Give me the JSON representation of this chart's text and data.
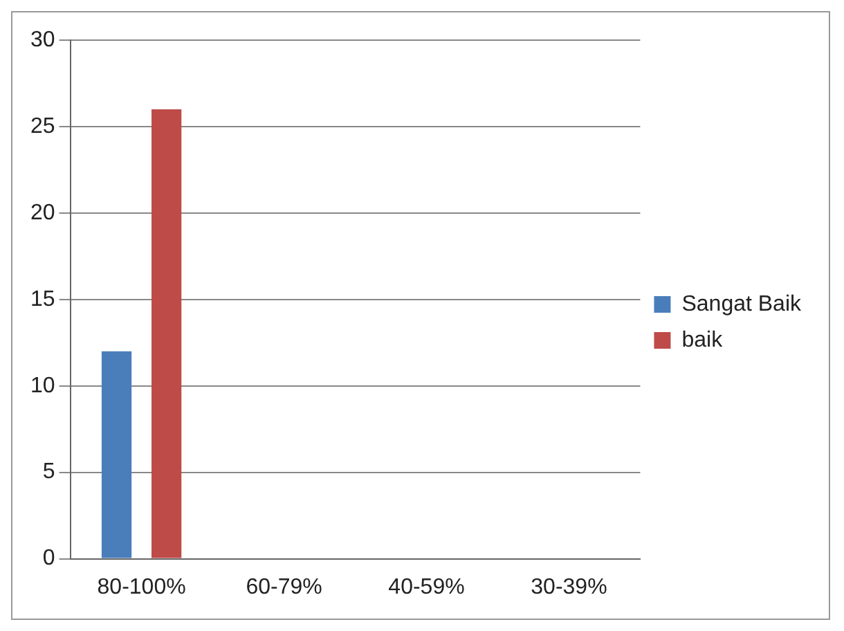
{
  "chart_data": {
    "type": "bar",
    "categories": [
      "80-100%",
      "60-79%",
      "40-59%",
      "30-39%"
    ],
    "series": [
      {
        "name": "Sangat Baik",
        "color": "#4a7ebb",
        "values": [
          12,
          0,
          0,
          0
        ]
      },
      {
        "name": "baik",
        "color": "#be4b48",
        "values": [
          26,
          0,
          0,
          0
        ]
      }
    ],
    "ylim": [
      0,
      30
    ],
    "yticks": [
      0,
      5,
      10,
      15,
      20,
      25,
      30
    ],
    "grid": "y",
    "legend": "right"
  }
}
